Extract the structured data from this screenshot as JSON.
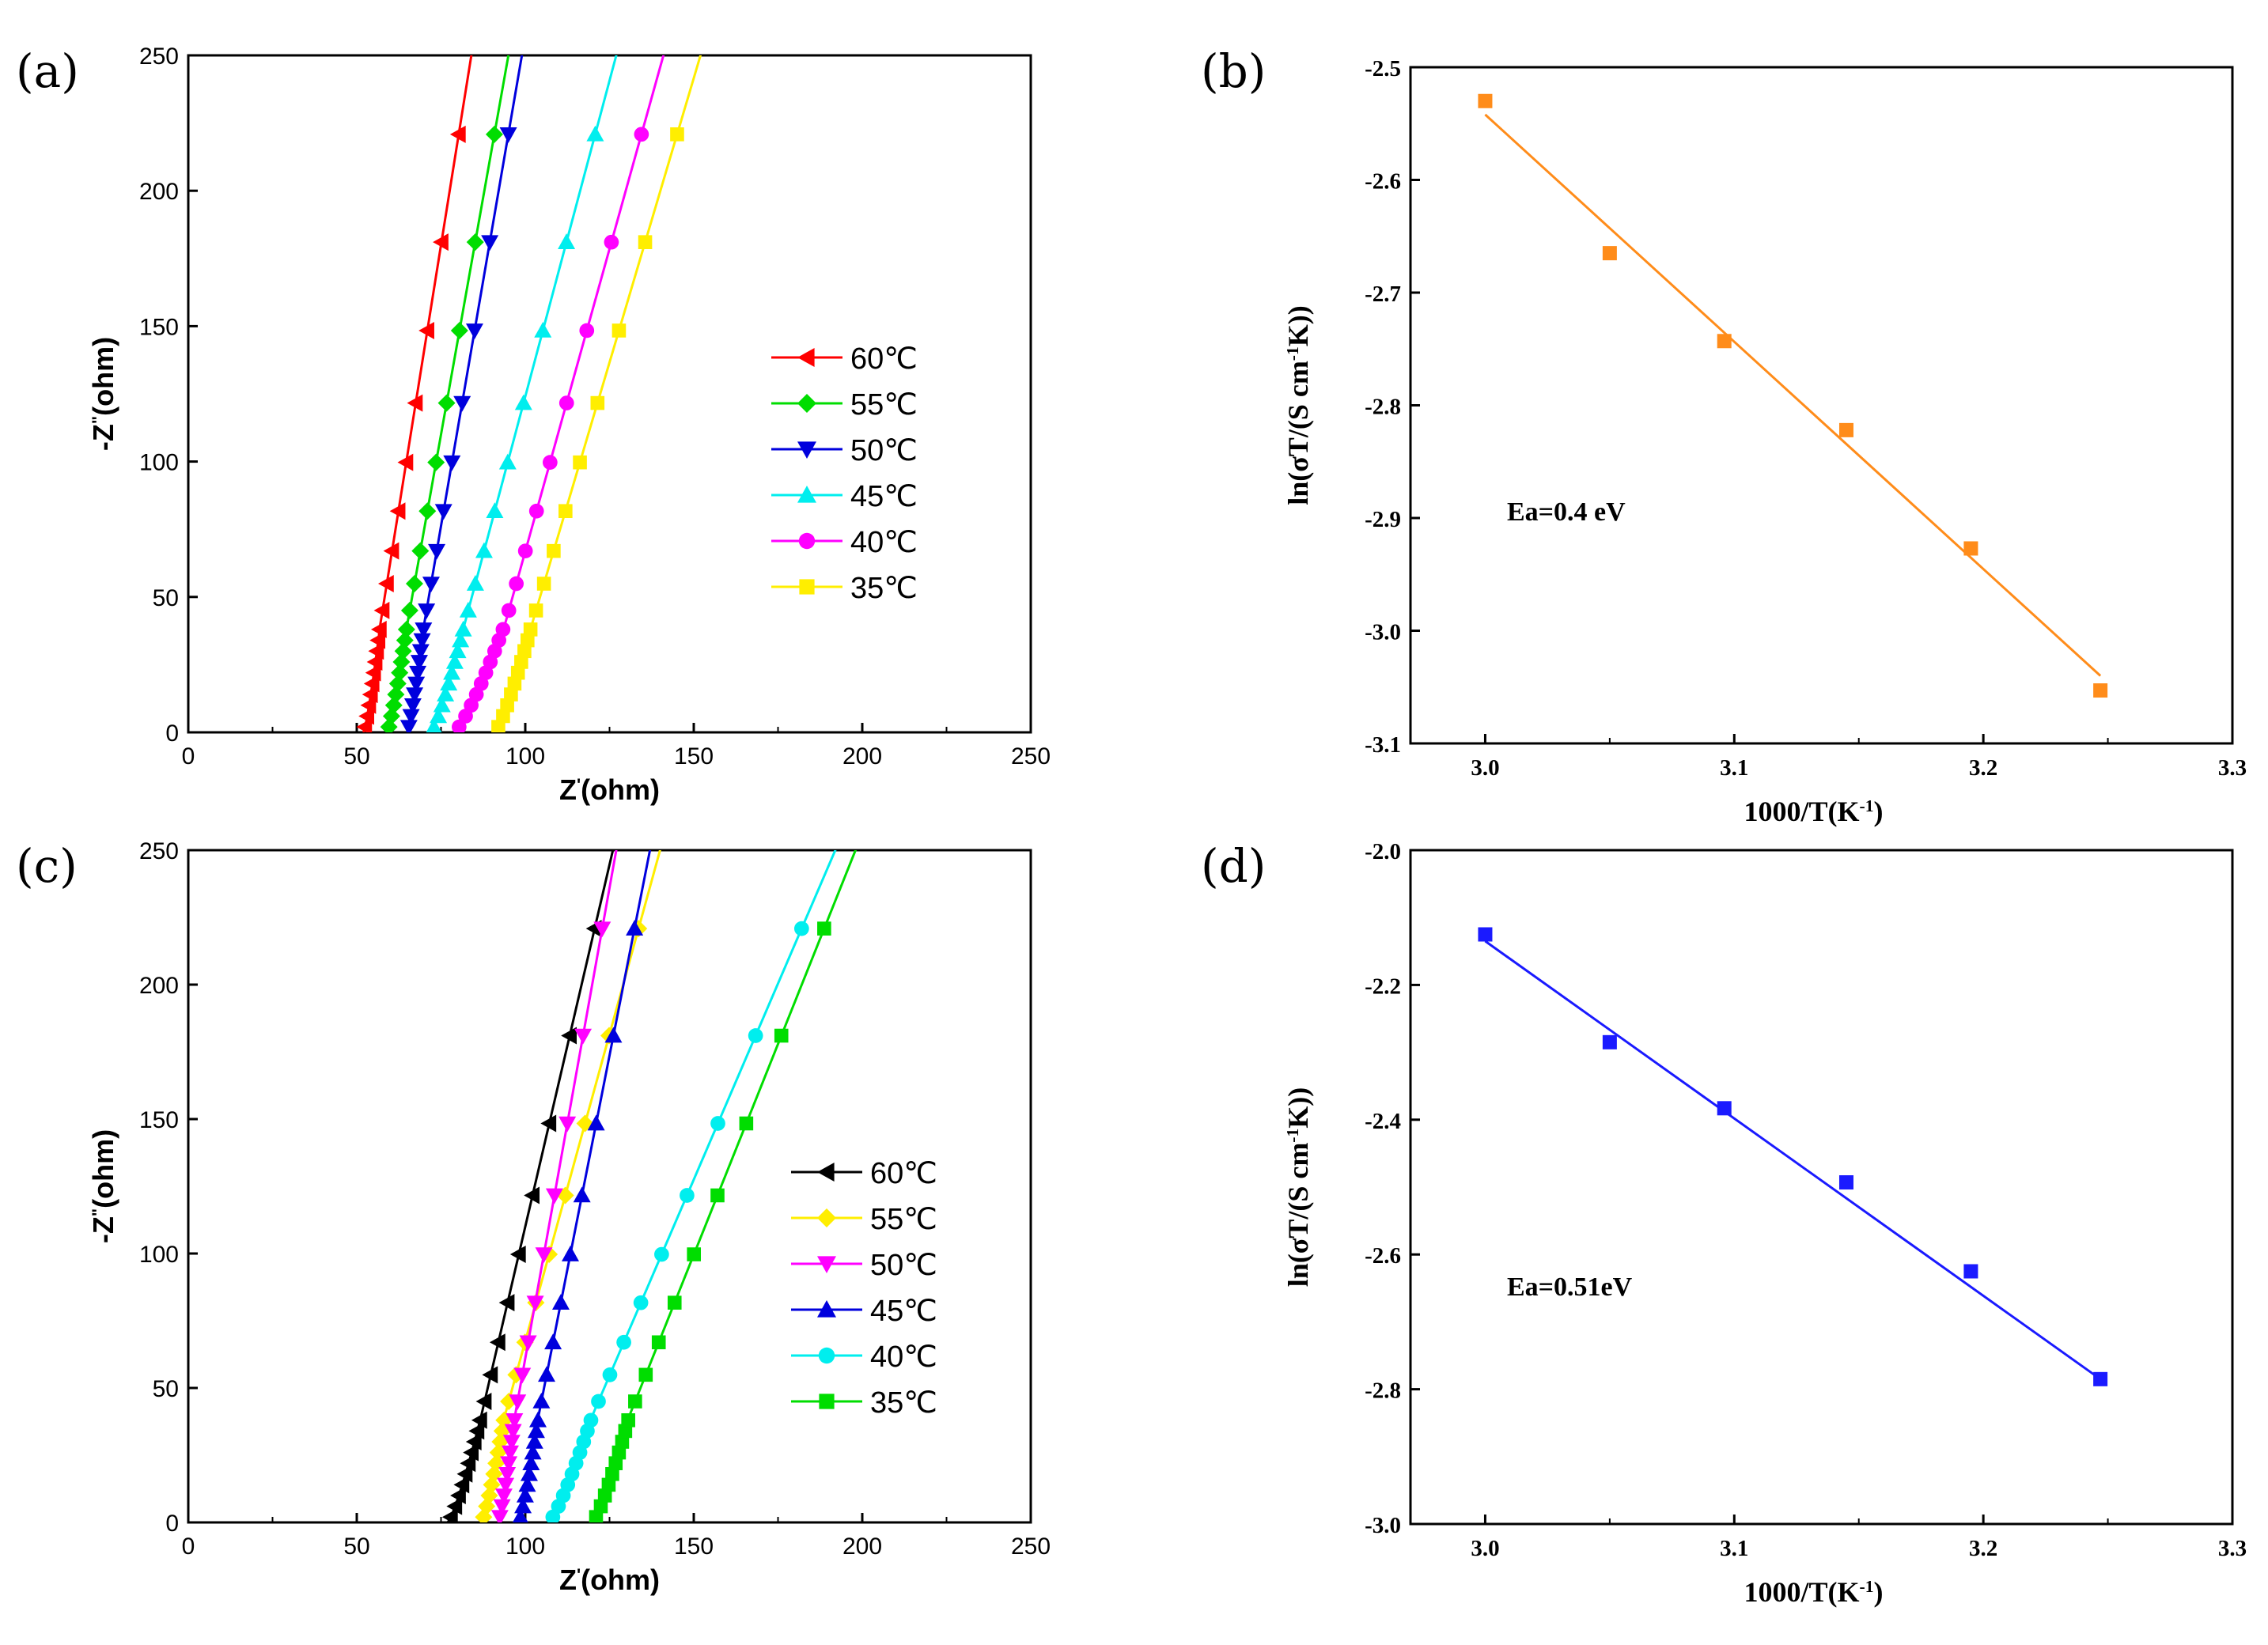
{
  "chart_data": [
    {
      "id": "a",
      "type": "line",
      "panel_label": "(a)",
      "xlabel": "Z'(ohm)",
      "ylabel": "-Z''(ohm)",
      "xlim": [
        0,
        250
      ],
      "ylim": [
        0,
        250
      ],
      "xticks": [
        "0",
        "50",
        "100",
        "150",
        "200",
        "250"
      ],
      "yticks": [
        "0",
        "50",
        "100",
        "150",
        "200",
        "250"
      ],
      "legend_position": "center-right",
      "series": [
        {
          "name": "60℃",
          "color": "#ff0000",
          "marker": "tri-left",
          "x0": 52,
          "x250": 84,
          "x40": 57
        },
        {
          "name": "55℃",
          "color": "#00dd00",
          "marker": "diamond",
          "x0": 59,
          "x250": 95,
          "x40": 65
        },
        {
          "name": "50℃",
          "color": "#0000dd",
          "marker": "tri-down",
          "x0": 65,
          "x250": 99,
          "x40": 70
        },
        {
          "name": "45℃",
          "color": "#00eeee",
          "marker": "tri-up",
          "x0": 72,
          "x250": 127,
          "x40": 82
        },
        {
          "name": "40℃",
          "color": "#ff00ff",
          "marker": "circle",
          "x0": 79,
          "x250": 141,
          "x40": 94
        },
        {
          "name": "35℃",
          "color": "#ffee00",
          "marker": "square",
          "x0": 91,
          "x250": 152,
          "x40": 102
        }
      ]
    },
    {
      "id": "b",
      "type": "scatter",
      "panel_label": "(b)",
      "xlabel": "1000/T(K-1)",
      "ylabel": "ln(σT/(S cm-1K))",
      "xlim": [
        2.97,
        3.3
      ],
      "ylim": [
        -3.1,
        -2.5
      ],
      "xticks": [
        "3.0",
        "3.1",
        "3.2",
        "3.3"
      ],
      "yticks": [
        "-2.5",
        "-2.6",
        "-2.7",
        "-2.8",
        "-2.9",
        "-3.0",
        "-3.1"
      ],
      "color": "#ff8c1a",
      "x": [
        3.0,
        3.05,
        3.096,
        3.145,
        3.195,
        3.247
      ],
      "y": [
        -2.53,
        -2.665,
        -2.743,
        -2.822,
        -2.927,
        -3.053
      ],
      "fit": [
        [
          3.0,
          -2.542
        ],
        [
          3.247,
          -3.04
        ]
      ],
      "annotation": "Ea=0.4 eV"
    },
    {
      "id": "c",
      "type": "line",
      "panel_label": "(c)",
      "xlabel": "Z'(ohm)",
      "ylabel": "-Z''(ohm)",
      "xlim": [
        0,
        250
      ],
      "ylim": [
        0,
        250
      ],
      "xticks": [
        "0",
        "50",
        "100",
        "150",
        "200",
        "250"
      ],
      "yticks": [
        "0",
        "50",
        "100",
        "150",
        "200",
        "250"
      ],
      "legend_position": "center-right",
      "series": [
        {
          "name": "60℃",
          "color": "#000000",
          "marker": "tri-left",
          "x0": 77,
          "x250": 126,
          "x40": 87
        },
        {
          "name": "55℃",
          "color": "#ffee00",
          "marker": "diamond",
          "x0": 87,
          "x250": 140,
          "x40": 94
        },
        {
          "name": "50℃",
          "color": "#ff00ff",
          "marker": "tri-down",
          "x0": 92,
          "x250": 127,
          "x40": 97
        },
        {
          "name": "45℃",
          "color": "#0000dd",
          "marker": "tri-up",
          "x0": 98,
          "x250": 137,
          "x40": 104
        },
        {
          "name": "40℃",
          "color": "#00eeee",
          "marker": "circle",
          "x0": 107,
          "x250": 192,
          "x40": 120
        },
        {
          "name": "35℃",
          "color": "#00dd00",
          "marker": "square",
          "x0": 120,
          "x250": 198,
          "x40": 131
        }
      ]
    },
    {
      "id": "d",
      "type": "scatter",
      "panel_label": "(d)",
      "xlabel": "1000/T(K-1)",
      "ylabel": "ln(σT/(S cm-1K))",
      "xlim": [
        2.97,
        3.3
      ],
      "ylim": [
        -3.0,
        -2.0
      ],
      "xticks": [
        "3.0",
        "3.1",
        "3.2",
        "3.3"
      ],
      "yticks": [
        "-2.0",
        "-2.2",
        "-2.4",
        "-2.6",
        "-2.8",
        "-3.0"
      ],
      "color": "#1a1aff",
      "x": [
        3.0,
        3.05,
        3.096,
        3.145,
        3.195,
        3.247
      ],
      "y": [
        -2.125,
        -2.285,
        -2.383,
        -2.493,
        -2.625,
        -2.785
      ],
      "fit": [
        [
          3.0,
          -2.135
        ],
        [
          3.247,
          -2.785
        ]
      ],
      "annotation": "Ea=0.51eV"
    }
  ]
}
